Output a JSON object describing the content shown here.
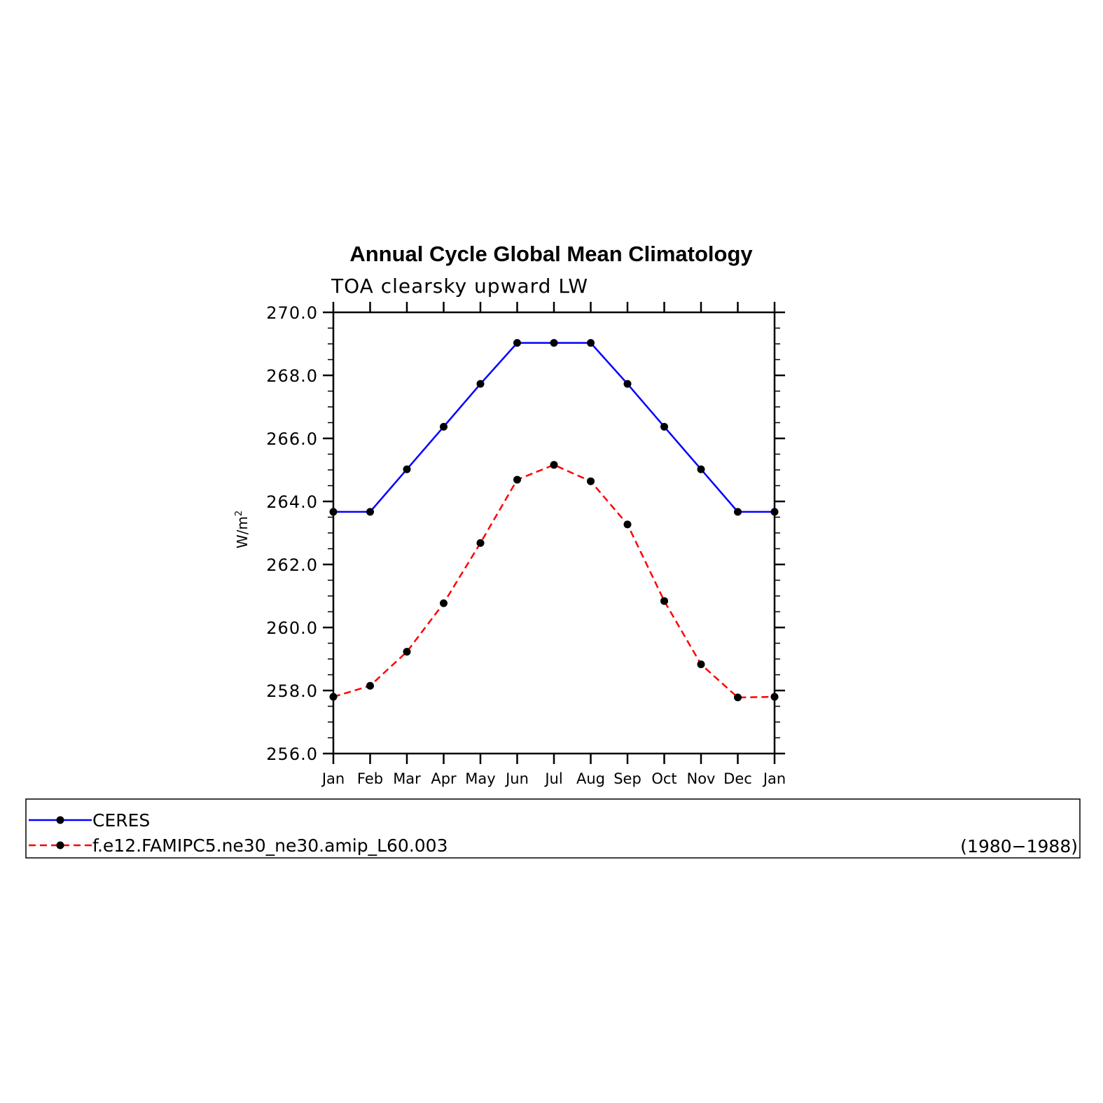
{
  "chart_data": {
    "type": "line",
    "title": "Annual Cycle Global Mean Climatology",
    "subtitle": "TOA clearsky upward LW",
    "ylabel": "W/m",
    "ylabel_superscript": "2",
    "ylim": [
      256.0,
      270.0
    ],
    "yticks": [
      "256.0",
      "258.0",
      "260.0",
      "262.0",
      "264.0",
      "266.0",
      "268.0",
      "270.0"
    ],
    "categories": [
      "Jan",
      "Feb",
      "Mar",
      "Apr",
      "May",
      "Jun",
      "Jul",
      "Aug",
      "Sep",
      "Oct",
      "Nov",
      "Dec",
      "Jan"
    ],
    "series": [
      {
        "name": "CERES",
        "color": "#0000ff",
        "dash": "solid",
        "values": [
          263.67,
          263.67,
          265.02,
          266.37,
          267.73,
          269.03,
          269.03,
          269.03,
          267.73,
          266.37,
          265.02,
          263.67,
          263.67
        ]
      },
      {
        "name": "f.e12.FAMIPC5.ne30_ne30.amip_L60.003",
        "color": "#ff0000",
        "dash": "dashed",
        "values": [
          257.8,
          258.15,
          259.23,
          260.77,
          262.68,
          264.69,
          265.16,
          264.64,
          263.27,
          260.84,
          258.83,
          257.78,
          257.8
        ]
      }
    ],
    "legend_note": "(1980−1988)",
    "legend_placement": "bottom",
    "grid": false
  }
}
